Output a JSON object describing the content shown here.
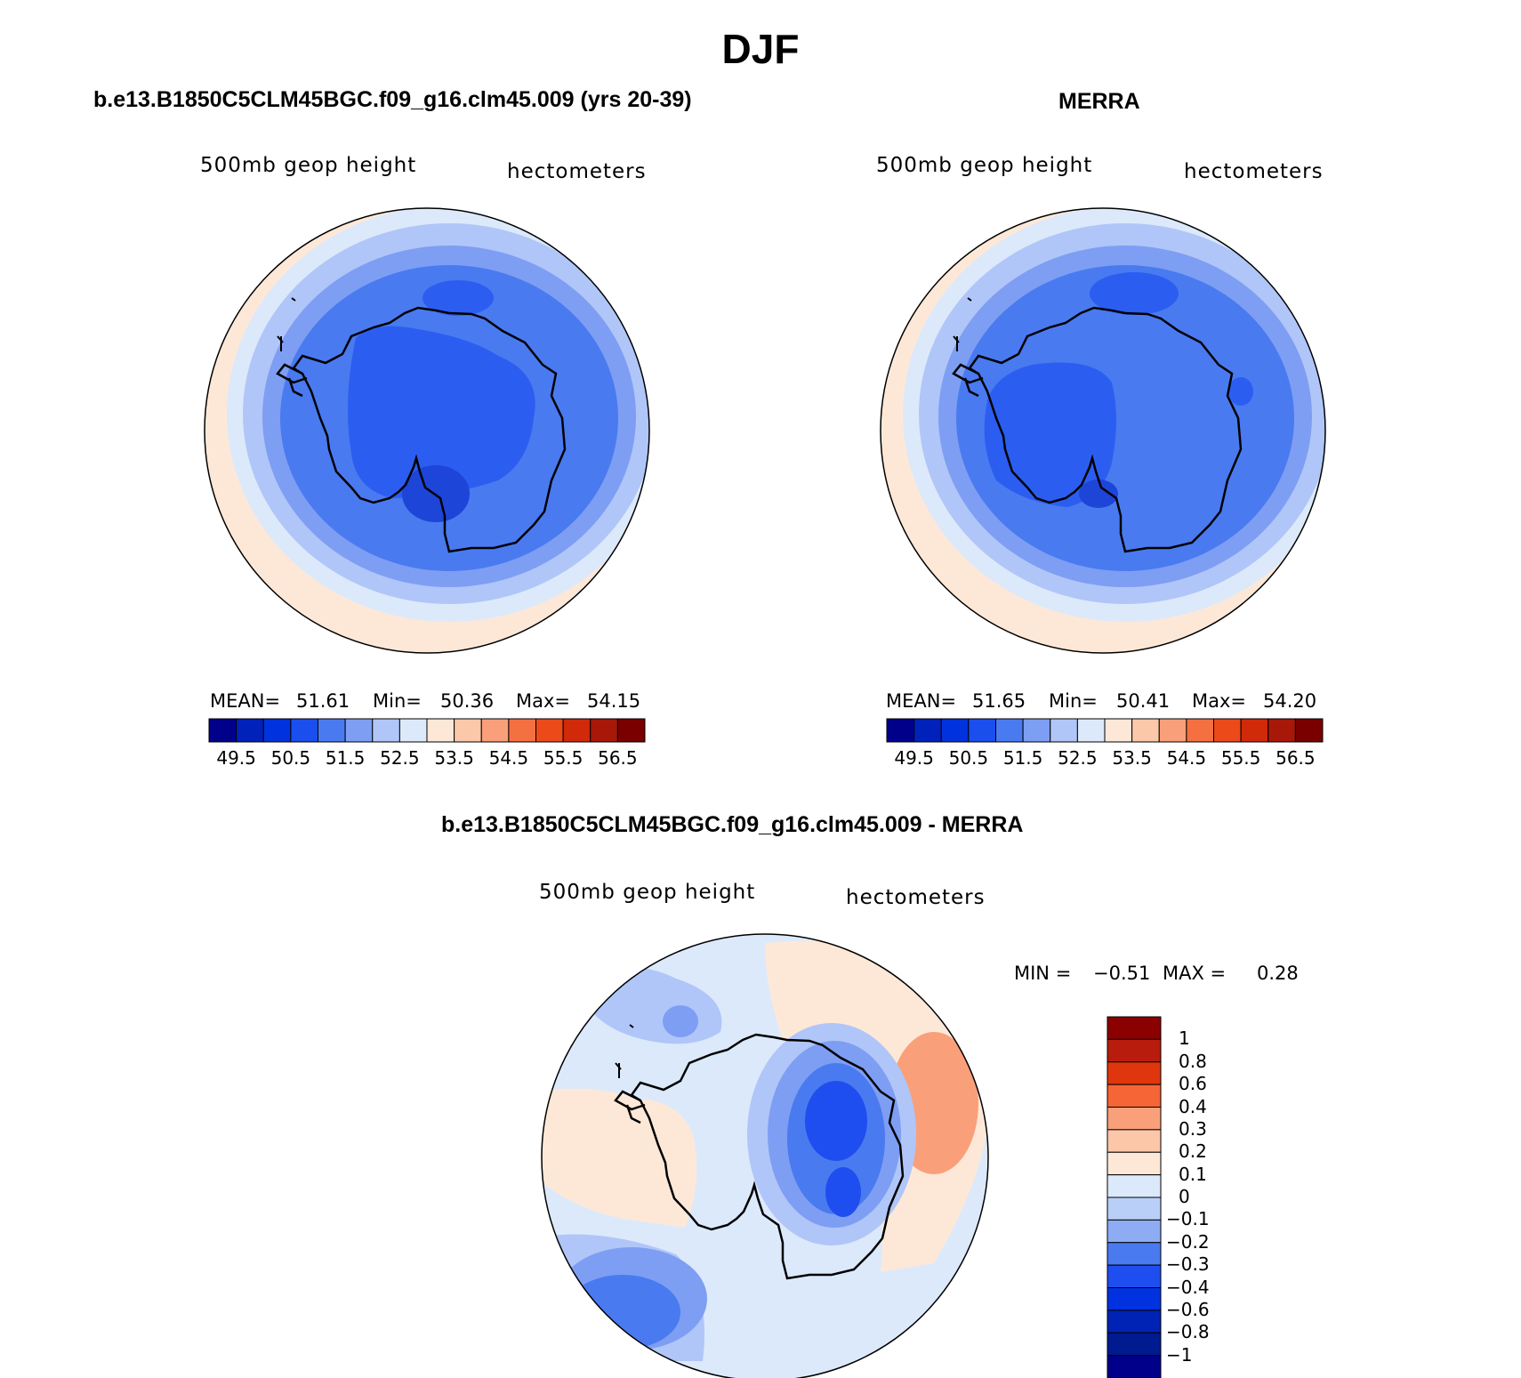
{
  "figure": {
    "title": "DJF",
    "panel_model_title": "b.e13.B1850C5CLM45BGC.f09_g16.clm45.009 (yrs 20-39)",
    "panel_obs_title": "MERRA",
    "panel_diff_title": "b.e13.B1850C5CLM45BGC.f09_g16.clm45.009 - MERRA"
  },
  "panels": {
    "model": {
      "left_label": "500mb  geop  height",
      "right_label": "hectometers",
      "mean_label": "MEAN=",
      "mean_value": "51.61",
      "min_label": "Min=",
      "min_value": "50.36",
      "max_label": "Max=",
      "max_value": "54.15"
    },
    "obs": {
      "left_label": "500mb  geop  height",
      "right_label": "hectometers",
      "mean_label": "MEAN=",
      "mean_value": "51.65",
      "min_label": "Min=",
      "min_value": "50.41",
      "max_label": "Max=",
      "max_value": "54.20"
    },
    "diff": {
      "left_label": "500mb  geop  height",
      "right_label": "hectometers",
      "min_label": "MIN =",
      "min_value": "−0.51",
      "max_label": "MAX =",
      "max_value": "0.28"
    }
  },
  "colorbars": {
    "abs": {
      "colors": [
        "#00008b",
        "#0022bb",
        "#0033dd",
        "#1a4fee",
        "#4a7af0",
        "#7d9ef3",
        "#b0c6f8",
        "#dce9fb",
        "#fde8d8",
        "#fbc8aa",
        "#f9a07a",
        "#f57040",
        "#ec4a1a",
        "#d02a0a",
        "#a81808",
        "#7a0000"
      ],
      "tick_labels": [
        "49.5",
        "50.5",
        "51.5",
        "52.5",
        "53.5",
        "54.5",
        "55.5",
        "56.5"
      ]
    },
    "diff": {
      "colors_top_to_bottom": [
        "#8b0000",
        "#b81c0c",
        "#e0360e",
        "#f56535",
        "#f9a07a",
        "#fcc7a8",
        "#fde8d8",
        "#dce9fb",
        "#b9cff8",
        "#8eacf3",
        "#4a7af0",
        "#1e4ef0",
        "#0032e0",
        "#0022b5",
        "#001a90",
        "#00008b"
      ],
      "tick_labels": [
        "1",
        "0.8",
        "0.6",
        "0.4",
        "0.3",
        "0.2",
        "0.1",
        "0",
        "−0.1",
        "−0.2",
        "−0.3",
        "−0.4",
        "−0.6",
        "−0.8",
        "−1"
      ]
    }
  }
}
